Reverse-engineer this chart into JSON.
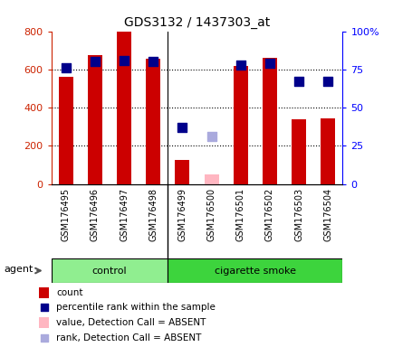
{
  "title": "GDS3132 / 1437303_at",
  "samples": [
    "GSM176495",
    "GSM176496",
    "GSM176497",
    "GSM176498",
    "GSM176499",
    "GSM176500",
    "GSM176501",
    "GSM176502",
    "GSM176503",
    "GSM176504"
  ],
  "counts": [
    560,
    675,
    800,
    655,
    125,
    null,
    620,
    660,
    340,
    345
  ],
  "percentile_ranks": [
    76,
    80,
    81,
    80,
    37,
    null,
    78,
    79,
    67,
    67
  ],
  "absent_value": [
    null,
    null,
    null,
    null,
    null,
    50,
    null,
    null,
    null,
    null
  ],
  "absent_rank": [
    null,
    null,
    null,
    null,
    null,
    31,
    null,
    null,
    null,
    null
  ],
  "detection_present": [
    true,
    true,
    true,
    true,
    true,
    false,
    true,
    true,
    true,
    true
  ],
  "groups": [
    "control",
    "control",
    "control",
    "control",
    "cigarette smoke",
    "cigarette smoke",
    "cigarette smoke",
    "cigarette smoke",
    "cigarette smoke",
    "cigarette smoke"
  ],
  "control_color": "#90EE90",
  "smoke_color": "#3DD43D",
  "bar_color_present": "#CC0000",
  "bar_color_absent": "#FFB6C1",
  "dot_color_present": "#00008B",
  "dot_color_absent": "#AAAADD",
  "xtick_bg_color": "#D0D0D0",
  "ylim_left": [
    0,
    800
  ],
  "ylim_right": [
    0,
    100
  ],
  "yticks_left": [
    0,
    200,
    400,
    600,
    800
  ],
  "yticks_right": [
    0,
    25,
    50,
    75,
    100
  ],
  "ytick_labels_right": [
    "0",
    "25",
    "50",
    "75",
    "100%"
  ],
  "bar_width": 0.5,
  "dot_size": 50,
  "n_control": 4,
  "n_total": 10
}
